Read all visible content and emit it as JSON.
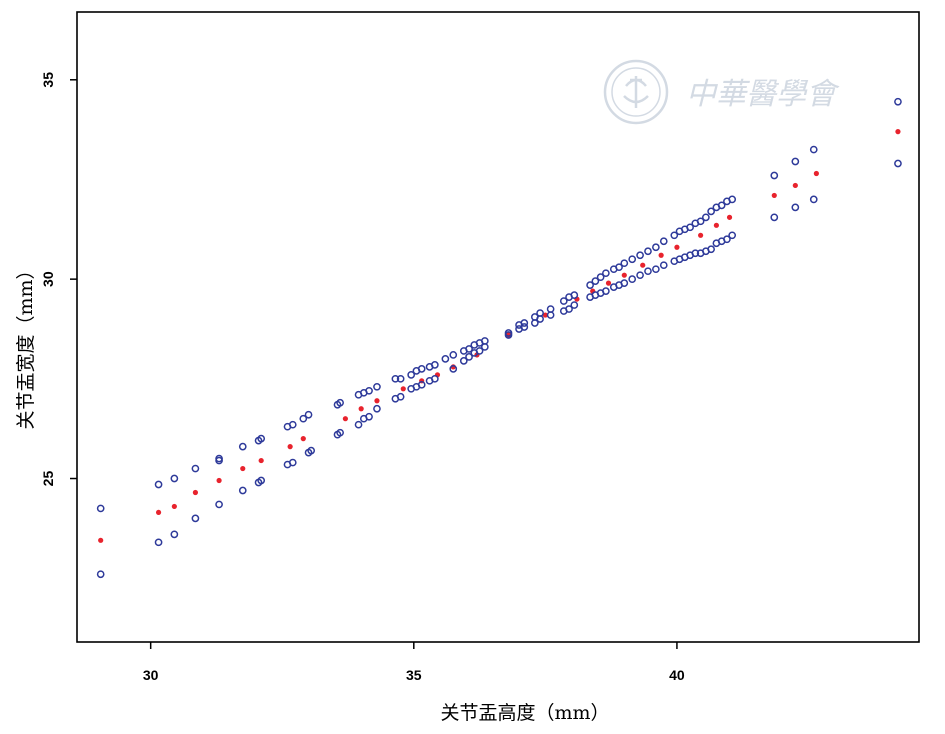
{
  "chart_data": {
    "type": "scatter",
    "xlabel": "关节盂高度（mm）",
    "ylabel": "关节盂宽度（mm）",
    "xlim": [
      28.6,
      44.6
    ],
    "ylim": [
      20.9,
      36.7
    ],
    "xticks": [
      30,
      35,
      40
    ],
    "yticks": [
      25,
      30,
      35
    ],
    "grid": false,
    "legend": "none",
    "colors": {
      "fit": "#e8232d",
      "bounds": "#2e3a9a"
    },
    "series": [
      {
        "marker": "filled-dot",
        "x": [
          29.05,
          30.15,
          30.45,
          30.85,
          31.3,
          31.75,
          32.1,
          32.65,
          32.9,
          33.7,
          34.0,
          34.3,
          34.8,
          35.15,
          35.45,
          35.75,
          36.2,
          36.8,
          37.5,
          38.1,
          38.4,
          38.7,
          39.0,
          39.35,
          39.7,
          40.0,
          40.45,
          40.75,
          41.0,
          41.85,
          42.25,
          42.65,
          44.2
        ],
        "y": [
          23.45,
          24.15,
          24.3,
          24.65,
          24.95,
          25.25,
          25.45,
          25.8,
          26.0,
          26.5,
          26.75,
          26.95,
          27.25,
          27.45,
          27.6,
          27.8,
          28.1,
          28.6,
          29.1,
          29.5,
          29.7,
          29.9,
          30.1,
          30.35,
          30.6,
          30.8,
          31.1,
          31.35,
          31.55,
          32.1,
          32.35,
          32.65,
          33.7
        ]
      },
      {
        "marker": "open-circle",
        "x": [
          29.05,
          30.15,
          30.45,
          30.85,
          31.3,
          31.3,
          31.75,
          32.05,
          32.1,
          32.6,
          32.7,
          32.9,
          33.0,
          33.55,
          33.6,
          33.95,
          34.05,
          34.15,
          34.3,
          34.65,
          34.75,
          34.95,
          35.05,
          35.15,
          35.3,
          35.4,
          35.6,
          35.75,
          35.95,
          36.05,
          36.15,
          36.25,
          36.35,
          36.8,
          37.0,
          37.1,
          37.3,
          37.4,
          37.6,
          37.85,
          37.95,
          38.05,
          38.35,
          38.45,
          38.55,
          38.65,
          38.8,
          38.9,
          39.0,
          39.15,
          39.3,
          39.45,
          39.6,
          39.75,
          39.95,
          40.05,
          40.15,
          40.25,
          40.35,
          40.45,
          40.55,
          40.65,
          40.75,
          40.85,
          40.95,
          41.05,
          41.85,
          42.25,
          42.6,
          44.2
        ],
        "y": [
          24.25,
          24.85,
          25.0,
          25.25,
          25.5,
          25.45,
          25.8,
          25.95,
          26.0,
          26.3,
          26.35,
          26.5,
          26.6,
          26.85,
          26.9,
          27.1,
          27.15,
          27.2,
          27.3,
          27.5,
          27.5,
          27.6,
          27.7,
          27.75,
          27.8,
          27.85,
          28.0,
          28.1,
          28.2,
          28.25,
          28.35,
          28.4,
          28.45,
          28.65,
          28.85,
          28.9,
          29.05,
          29.15,
          29.25,
          29.45,
          29.55,
          29.6,
          29.85,
          29.95,
          30.05,
          30.15,
          30.25,
          30.3,
          30.4,
          30.5,
          30.6,
          30.7,
          30.8,
          30.95,
          31.1,
          31.2,
          31.25,
          31.3,
          31.4,
          31.45,
          31.55,
          31.7,
          31.8,
          31.85,
          31.95,
          32.0,
          32.6,
          32.95,
          33.25,
          34.45
        ]
      },
      {
        "marker": "open-circle",
        "x": [
          29.05,
          30.15,
          30.45,
          30.85,
          31.3,
          31.75,
          32.05,
          32.1,
          32.6,
          32.7,
          33.0,
          33.05,
          33.55,
          33.6,
          33.95,
          34.05,
          34.15,
          34.3,
          34.65,
          34.75,
          34.95,
          35.05,
          35.15,
          35.3,
          35.4,
          35.75,
          35.95,
          36.05,
          36.15,
          36.25,
          36.35,
          36.8,
          37.0,
          37.1,
          37.3,
          37.4,
          37.6,
          37.85,
          37.95,
          38.05,
          38.35,
          38.45,
          38.55,
          38.65,
          38.8,
          38.9,
          39.0,
          39.15,
          39.3,
          39.45,
          39.6,
          39.75,
          39.95,
          40.05,
          40.15,
          40.25,
          40.35,
          40.45,
          40.55,
          40.65,
          40.75,
          40.85,
          40.95,
          41.05,
          41.85,
          42.25,
          42.6,
          44.2
        ],
        "y": [
          22.6,
          23.4,
          23.6,
          24.0,
          24.35,
          24.7,
          24.9,
          24.95,
          25.35,
          25.4,
          25.65,
          25.7,
          26.1,
          26.15,
          26.35,
          26.5,
          26.55,
          26.75,
          27.0,
          27.05,
          27.25,
          27.3,
          27.35,
          27.45,
          27.5,
          27.75,
          27.95,
          28.05,
          28.15,
          28.2,
          28.3,
          28.6,
          28.75,
          28.8,
          28.9,
          29.0,
          29.1,
          29.2,
          29.25,
          29.35,
          29.55,
          29.6,
          29.65,
          29.7,
          29.8,
          29.85,
          29.9,
          30.0,
          30.1,
          30.2,
          30.25,
          30.35,
          30.45,
          30.5,
          30.55,
          30.6,
          30.65,
          30.65,
          30.7,
          30.75,
          30.9,
          30.95,
          31.0,
          31.1,
          31.55,
          31.8,
          32.0,
          32.9
        ]
      }
    ]
  },
  "watermark": {
    "text": "中華醫學會",
    "icon": "cma-emblem-icon"
  }
}
